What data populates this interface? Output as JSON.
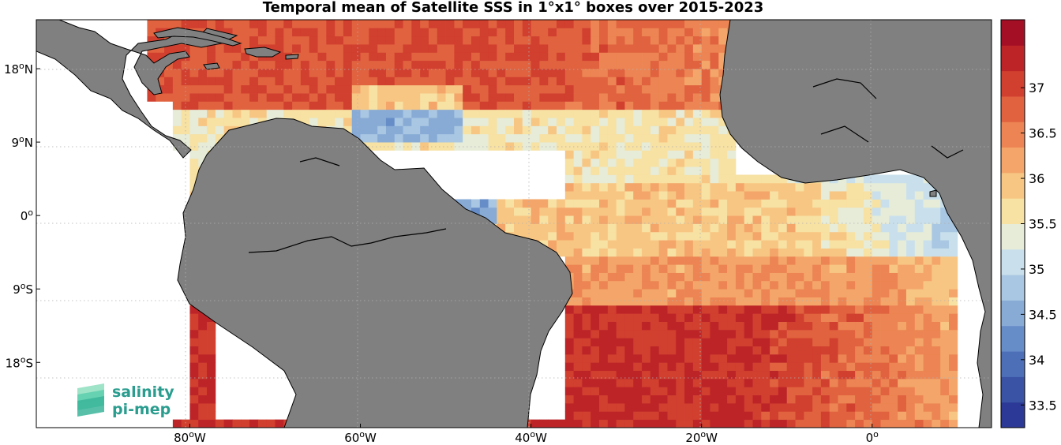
{
  "title": "Temporal mean of Satellite SSS in 1°x1° boxes over 2015-2023",
  "map": {
    "lon_range": [
      -98,
      14
    ],
    "lat_range": [
      -26,
      24
    ],
    "lon_ticks": [
      {
        "value": -80,
        "num": "80",
        "sup": "o",
        "hem": "W"
      },
      {
        "value": -60,
        "num": "60",
        "sup": "o",
        "hem": "W"
      },
      {
        "value": -40,
        "num": "40",
        "sup": "o",
        "hem": "W"
      },
      {
        "value": -20,
        "num": "20",
        "sup": "o",
        "hem": "W"
      },
      {
        "value": 0,
        "num": "0",
        "sup": "o",
        "hem": ""
      }
    ],
    "lat_ticks": [
      {
        "value": 18,
        "num": "18",
        "sup": "o",
        "hem": "N"
      },
      {
        "value": 9,
        "num": "9",
        "sup": "o",
        "hem": "N"
      },
      {
        "value": 0,
        "num": "0",
        "sup": "o",
        "hem": ""
      },
      {
        "value": -9,
        "num": "9",
        "sup": "o",
        "hem": "S"
      },
      {
        "value": -18,
        "num": "18",
        "sup": "o",
        "hem": "S"
      }
    ],
    "land_color": "#808080",
    "grid": true
  },
  "colorbar": {
    "range": [
      33.25,
      37.75
    ],
    "ticks": [
      "33.5",
      "34",
      "34.5",
      "35",
      "35.5",
      "36",
      "36.5",
      "37"
    ],
    "colors": [
      "#2c3996",
      "#3a53a4",
      "#4d6fb8",
      "#678dc8",
      "#88abd6",
      "#a9c7e2",
      "#c9e0ec",
      "#e6ecd8",
      "#f7e1a3",
      "#f8c683",
      "#f4a66a",
      "#ec8553",
      "#e0623f",
      "#d13f2f",
      "#bc2428",
      "#a50f26"
    ]
  },
  "logo": {
    "line1": "salinity",
    "line2": "pi-mep"
  }
}
